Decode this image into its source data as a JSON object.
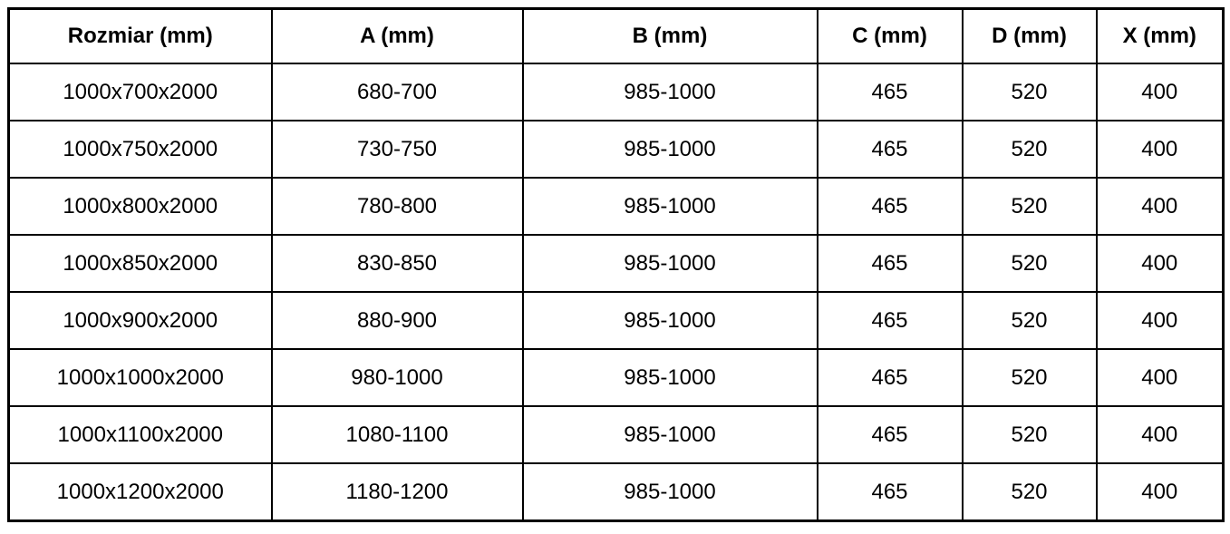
{
  "table": {
    "columns": [
      "Rozmiar (mm)",
      "A (mm)",
      "B (mm)",
      "C (mm)",
      "D (mm)",
      "X (mm)"
    ],
    "rows": [
      [
        "1000x700x2000",
        "680-700",
        "985-1000",
        "465",
        "520",
        "400"
      ],
      [
        "1000x750x2000",
        "730-750",
        "985-1000",
        "465",
        "520",
        "400"
      ],
      [
        "1000x800x2000",
        "780-800",
        "985-1000",
        "465",
        "520",
        "400"
      ],
      [
        "1000x850x2000",
        "830-850",
        "985-1000",
        "465",
        "520",
        "400"
      ],
      [
        "1000x900x2000",
        "880-900",
        "985-1000",
        "465",
        "520",
        "400"
      ],
      [
        "1000x1000x2000",
        "980-1000",
        "985-1000",
        "465",
        "520",
        "400"
      ],
      [
        "1000x1100x2000",
        "1080-1100",
        "985-1000",
        "465",
        "520",
        "400"
      ],
      [
        "1000x1200x2000",
        "1180-1200",
        "985-1000",
        "465",
        "520",
        "400"
      ]
    ],
    "colors": {
      "border": "#000000",
      "text": "#000000",
      "background": "#ffffff"
    }
  }
}
